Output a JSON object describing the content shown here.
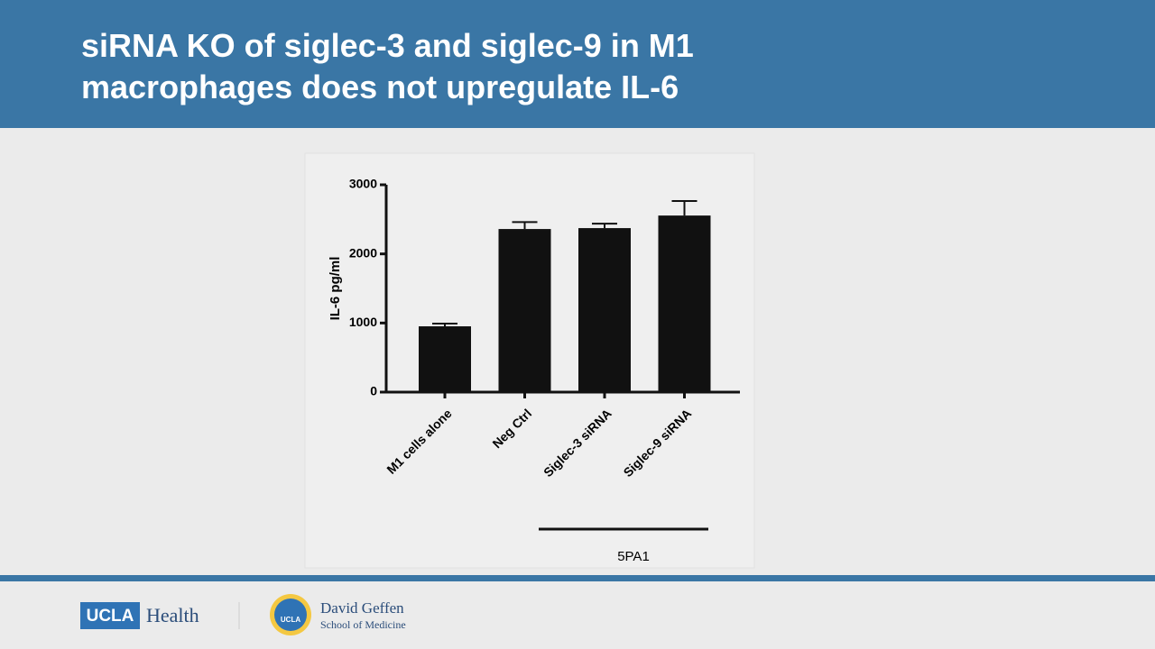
{
  "header": {
    "title": "siRNA KO of siglec-3 and siglec-9 in M1 macrophages does not upregulate IL-6"
  },
  "chart_data": {
    "type": "bar",
    "y_label": "IL-6 pg/ml",
    "categories": [
      "M1 cells alone",
      "Neg Ctrl",
      "Siglec-3 siRNA",
      "Siglec-9 siRNA"
    ],
    "values": [
      952,
      2360,
      2373,
      2555
    ],
    "errors": [
      40,
      100,
      65,
      210
    ],
    "color": "#111111",
    "ylim": [
      0,
      3000
    ],
    "yticks": [
      0,
      1000,
      2000,
      3000
    ],
    "grid": false,
    "group_label": "5PA1"
  },
  "footer": {
    "brand": "UCLA",
    "brand_suffix": "Health",
    "school_name": "David Geffen",
    "school_subtitle": "School of Medicine",
    "seal": "UCLA"
  }
}
